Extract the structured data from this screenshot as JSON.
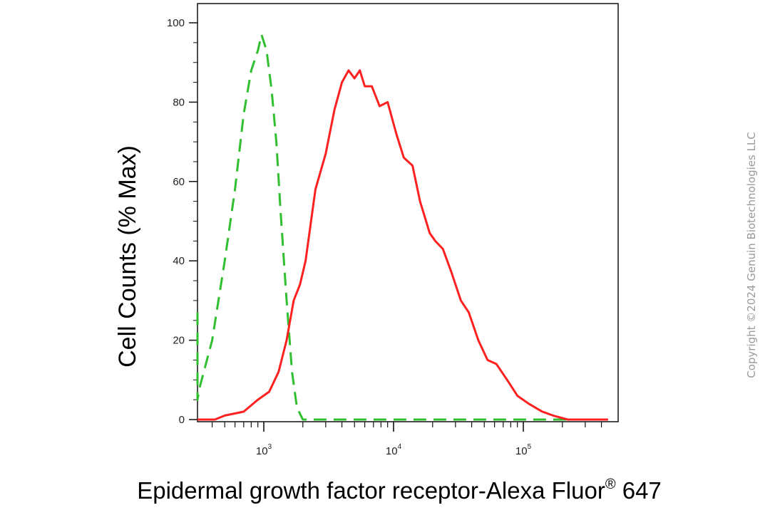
{
  "chart_data": {
    "type": "line",
    "title": "",
    "xlabel_main": "Epidermal growth factor receptor-Alexa Fluor",
    "xlabel_sup": "®",
    "xlabel_tail": " 647",
    "ylabel": "Cell Counts (% Max)",
    "x_scale": "log",
    "xlim": [
      250,
      450000
    ],
    "ylim": [
      0,
      105
    ],
    "y_ticks": [
      "0",
      "20",
      "40",
      "60",
      "80",
      "100"
    ],
    "x_major_ticks": [
      {
        "base": "10",
        "exp": "3",
        "value": 1000
      },
      {
        "base": "10",
        "exp": "4",
        "value": 10000
      },
      {
        "base": "10",
        "exp": "5",
        "value": 100000
      }
    ],
    "grid": false,
    "legend": "none",
    "series": [
      {
        "color": "#2fbf2f",
        "style": "dashed",
        "points": [
          [
            260,
            27
          ],
          [
            280,
            5
          ],
          [
            320,
            8
          ],
          [
            400,
            20
          ],
          [
            500,
            40
          ],
          [
            600,
            58
          ],
          [
            700,
            77
          ],
          [
            800,
            88
          ],
          [
            900,
            93
          ],
          [
            960,
            97
          ],
          [
            1050,
            93
          ],
          [
            1150,
            83
          ],
          [
            1250,
            70
          ],
          [
            1350,
            52
          ],
          [
            1500,
            30
          ],
          [
            1650,
            12
          ],
          [
            1800,
            3
          ],
          [
            2000,
            0
          ],
          [
            3000,
            0
          ],
          [
            10000,
            0
          ],
          [
            100000,
            0
          ],
          [
            400000,
            0
          ]
        ]
      },
      {
        "color": "#ff2020",
        "style": "solid",
        "points": [
          [
            300,
            0
          ],
          [
            420,
            0
          ],
          [
            500,
            1
          ],
          [
            700,
            2
          ],
          [
            900,
            5
          ],
          [
            1100,
            7
          ],
          [
            1300,
            12
          ],
          [
            1500,
            20
          ],
          [
            1700,
            30
          ],
          [
            1900,
            34
          ],
          [
            2100,
            40
          ],
          [
            2500,
            58
          ],
          [
            3000,
            67
          ],
          [
            3500,
            78
          ],
          [
            4000,
            85
          ],
          [
            4500,
            88
          ],
          [
            5000,
            86
          ],
          [
            5500,
            88
          ],
          [
            6000,
            84
          ],
          [
            6800,
            84
          ],
          [
            7800,
            79
          ],
          [
            9000,
            80
          ],
          [
            10500,
            72
          ],
          [
            12000,
            66
          ],
          [
            14000,
            64
          ],
          [
            16000,
            55
          ],
          [
            19000,
            47
          ],
          [
            21000,
            45
          ],
          [
            24000,
            43
          ],
          [
            28000,
            37
          ],
          [
            33000,
            30
          ],
          [
            38000,
            27
          ],
          [
            45000,
            20
          ],
          [
            53000,
            15
          ],
          [
            62000,
            14
          ],
          [
            75000,
            10
          ],
          [
            90000,
            6
          ],
          [
            110000,
            4
          ],
          [
            140000,
            2
          ],
          [
            170000,
            1
          ],
          [
            220000,
            0
          ],
          [
            450000,
            0
          ]
        ]
      }
    ]
  },
  "copyright": "Copyright ©2024 Genuin Biotechnologies LLC"
}
